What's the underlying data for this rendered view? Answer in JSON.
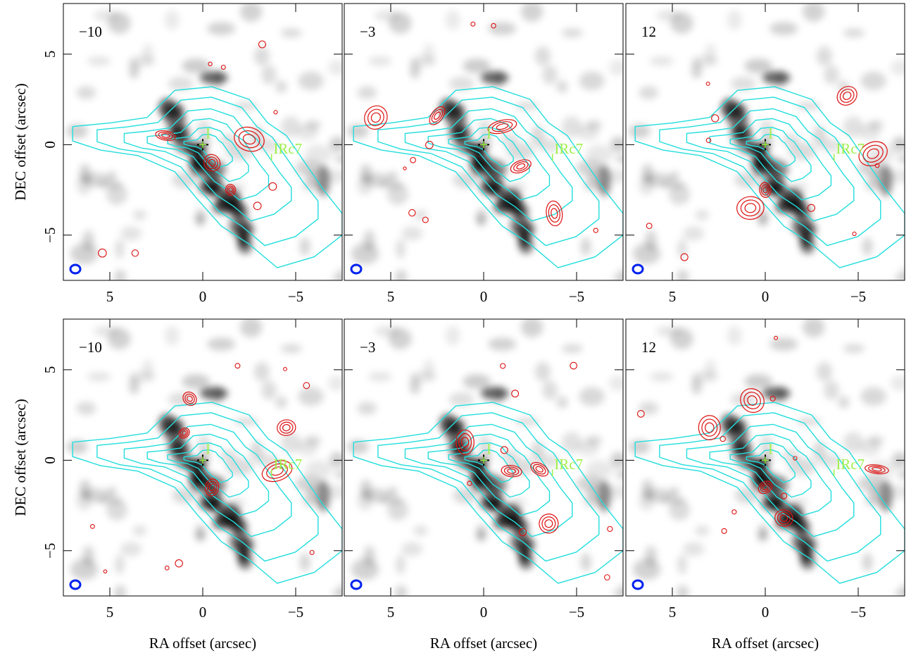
{
  "chart_data": [
    {
      "type": "contour-map",
      "label": "−10",
      "annotations": [
        "I",
        "IRc7"
      ],
      "xlim": [
        7.5,
        -7.5
      ],
      "ylim": [
        -7.5,
        7.8
      ],
      "xticks": [
        5,
        0,
        {
          "value": -5,
          "label": "−5"
        }
      ],
      "yticks": [
        {
          "value": -5,
          "label": "−5"
        },
        0,
        5
      ],
      "show_ytick_labels": true,
      "ylabel": "DEC offset (arcsec)"
    },
    {
      "type": "contour-map",
      "label": "−3",
      "annotations": [
        "I",
        "IRc7"
      ],
      "xlim": [
        7.5,
        -7.5
      ],
      "ylim": [
        -7.5,
        7.8
      ],
      "xticks": [
        5,
        0,
        {
          "value": -5,
          "label": "−5"
        }
      ],
      "yticks": [
        -5,
        0,
        5
      ],
      "show_ytick_labels": false
    },
    {
      "type": "contour-map",
      "label": "12",
      "annotations": [
        "I",
        "IRc7"
      ],
      "xlim": [
        7.5,
        -7.5
      ],
      "ylim": [
        -7.5,
        7.8
      ],
      "xticks": [
        5,
        0,
        {
          "value": -5,
          "label": "−5"
        }
      ],
      "yticks": [
        -5,
        0,
        5
      ],
      "show_ytick_labels": false
    },
    {
      "type": "contour-map",
      "label": "−10",
      "annotations": [
        "I",
        "IRc7"
      ],
      "xlim": [
        7.5,
        -7.5
      ],
      "ylim": [
        -7.5,
        7.8
      ],
      "xticks": [
        5,
        0,
        {
          "value": -5,
          "label": "−5"
        }
      ],
      "yticks": [
        {
          "value": -5,
          "label": "−5"
        },
        0,
        5
      ],
      "show_ytick_labels": true,
      "ylabel": "DEC offset (arcsec)",
      "xlabel": "RA offset (arcsec)"
    },
    {
      "type": "contour-map",
      "label": "−3",
      "annotations": [
        "I",
        "IRc7"
      ],
      "xlim": [
        7.5,
        -7.5
      ],
      "ylim": [
        -7.5,
        7.8
      ],
      "xticks": [
        5,
        0,
        {
          "value": -5,
          "label": "−5"
        }
      ],
      "yticks": [
        -5,
        0,
        5
      ],
      "show_ytick_labels": false,
      "xlabel": "RA offset (arcsec)"
    },
    {
      "type": "contour-map",
      "label": "12",
      "annotations": [
        "I",
        "IRc7"
      ],
      "xlim": [
        7.5,
        -7.5
      ],
      "ylim": [
        -7.5,
        7.8
      ],
      "xticks": [
        5,
        0,
        {
          "value": -5,
          "label": "−5"
        }
      ],
      "yticks": [
        -5,
        0,
        5
      ],
      "show_ytick_labels": false,
      "xlabel": "RA offset (arcsec)"
    }
  ]
}
